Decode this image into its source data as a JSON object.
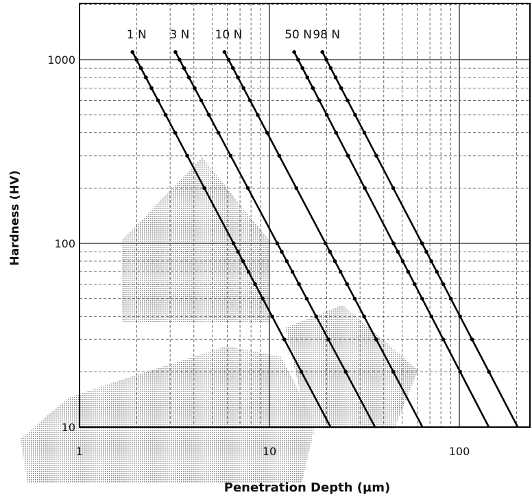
{
  "chart_data": {
    "type": "line",
    "xlabel": "Penetration Depth (µm)",
    "ylabel": "Hardness (HV)",
    "xscale": "log",
    "yscale": "log",
    "xlim": [
      1,
      300
    ],
    "ylim": [
      10,
      3000
    ],
    "grid": true,
    "x_ticks": [
      {
        "value": 1,
        "label": "1"
      },
      {
        "value": 10,
        "label": "10"
      },
      {
        "value": 100,
        "label": "100"
      }
    ],
    "y_ticks": [
      {
        "value": 10,
        "label": "10"
      },
      {
        "value": 100,
        "label": "100"
      },
      {
        "value": 1000,
        "label": "1000"
      }
    ],
    "series": [
      {
        "name": "1 N",
        "points": [
          [
            1.9,
            1100
          ],
          [
            21,
            10
          ]
        ]
      },
      {
        "name": "3 N",
        "points": [
          [
            3.2,
            1100
          ],
          [
            36,
            10
          ]
        ]
      },
      {
        "name": "10 N",
        "points": [
          [
            5.8,
            1100
          ],
          [
            64,
            10
          ]
        ]
      },
      {
        "name": "50 N",
        "points": [
          [
            13.5,
            1100
          ],
          [
            143,
            10
          ]
        ]
      },
      {
        "name": "98 N",
        "points": [
          [
            19,
            1100
          ],
          [
            203,
            10
          ]
        ]
      }
    ]
  }
}
